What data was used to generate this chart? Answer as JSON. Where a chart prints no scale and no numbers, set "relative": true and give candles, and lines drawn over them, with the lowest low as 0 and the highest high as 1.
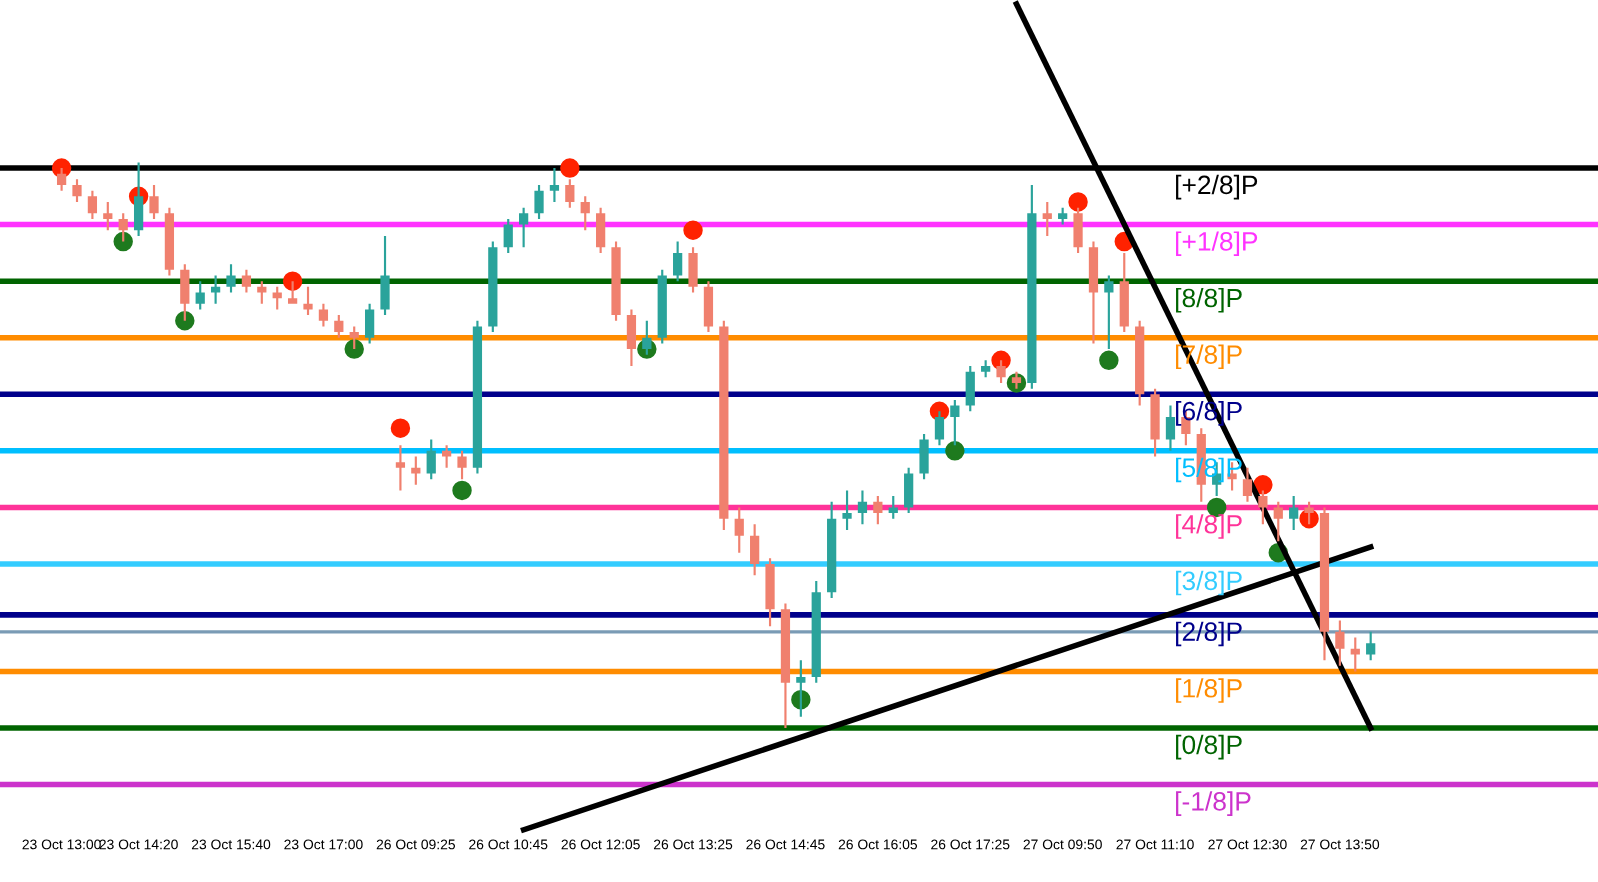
{
  "chart_data": {
    "type": "candlestick",
    "relative": true,
    "categories": [
      "23 Oct 13:00",
      null,
      null,
      null,
      null,
      "23 Oct 14:20",
      null,
      null,
      null,
      null,
      null,
      "23 Oct 15:40",
      null,
      null,
      null,
      null,
      null,
      "23 Oct 17:00",
      null,
      null,
      null,
      null,
      null,
      "26 Oct 09:25",
      null,
      null,
      null,
      null,
      null,
      "26 Oct 10:45",
      null,
      null,
      null,
      null,
      null,
      "26 Oct 12:05",
      null,
      null,
      null,
      null,
      null,
      "26 Oct 13:25",
      null,
      null,
      null,
      null,
      null,
      "26 Oct 14:45",
      null,
      null,
      null,
      null,
      null,
      "26 Oct 16:05",
      null,
      null,
      null,
      null,
      null,
      "26 Oct 17:25",
      null,
      null,
      null,
      null,
      null,
      "27 Oct 09:50",
      null,
      null,
      null,
      null,
      null,
      "27 Oct 11:10",
      null,
      null,
      null,
      null,
      null,
      "27 Oct 12:30",
      null,
      null,
      null,
      null,
      null,
      "27 Oct 13:50",
      null,
      null
    ],
    "ohlc": [
      [
        0.98,
        0.99,
        0.95,
        0.96
      ],
      [
        0.96,
        0.97,
        0.93,
        0.94
      ],
      [
        0.94,
        0.95,
        0.9,
        0.91
      ],
      [
        0.91,
        0.93,
        0.88,
        0.9
      ],
      [
        0.9,
        0.91,
        0.86,
        0.88
      ],
      [
        0.88,
        1.0,
        0.87,
        0.94
      ],
      [
        0.94,
        0.96,
        0.9,
        0.91
      ],
      [
        0.91,
        0.92,
        0.8,
        0.81
      ],
      [
        0.81,
        0.82,
        0.72,
        0.75
      ],
      [
        0.75,
        0.79,
        0.74,
        0.77
      ],
      [
        0.77,
        0.8,
        0.75,
        0.78
      ],
      [
        0.78,
        0.82,
        0.77,
        0.8
      ],
      [
        0.8,
        0.81,
        0.77,
        0.78
      ],
      [
        0.78,
        0.79,
        0.75,
        0.77
      ],
      [
        0.77,
        0.78,
        0.74,
        0.76
      ],
      [
        0.76,
        0.79,
        0.75,
        0.75
      ],
      [
        0.75,
        0.78,
        0.73,
        0.74
      ],
      [
        0.74,
        0.75,
        0.71,
        0.72
      ],
      [
        0.72,
        0.73,
        0.69,
        0.7
      ],
      [
        0.7,
        0.71,
        0.67,
        0.69
      ],
      [
        0.69,
        0.75,
        0.68,
        0.74
      ],
      [
        0.74,
        0.87,
        0.73,
        0.8
      ],
      [
        0.47,
        0.5,
        0.42,
        0.46
      ],
      [
        0.46,
        0.48,
        0.43,
        0.45
      ],
      [
        0.45,
        0.51,
        0.44,
        0.49
      ],
      [
        0.49,
        0.5,
        0.46,
        0.48
      ],
      [
        0.48,
        0.49,
        0.44,
        0.46
      ],
      [
        0.46,
        0.72,
        0.45,
        0.71
      ],
      [
        0.71,
        0.86,
        0.7,
        0.85
      ],
      [
        0.85,
        0.9,
        0.84,
        0.89
      ],
      [
        0.89,
        0.92,
        0.85,
        0.91
      ],
      [
        0.91,
        0.96,
        0.9,
        0.95
      ],
      [
        0.95,
        0.99,
        0.93,
        0.96
      ],
      [
        0.96,
        0.97,
        0.92,
        0.93
      ],
      [
        0.93,
        0.94,
        0.88,
        0.91
      ],
      [
        0.91,
        0.92,
        0.84,
        0.85
      ],
      [
        0.85,
        0.86,
        0.72,
        0.73
      ],
      [
        0.73,
        0.74,
        0.64,
        0.67
      ],
      [
        0.67,
        0.72,
        0.66,
        0.69
      ],
      [
        0.69,
        0.81,
        0.68,
        0.8
      ],
      [
        0.8,
        0.86,
        0.79,
        0.84
      ],
      [
        0.84,
        0.85,
        0.77,
        0.78
      ],
      [
        0.78,
        0.79,
        0.7,
        0.71
      ],
      [
        0.71,
        0.72,
        0.35,
        0.37
      ],
      [
        0.37,
        0.39,
        0.31,
        0.34
      ],
      [
        0.34,
        0.36,
        0.27,
        0.29
      ],
      [
        0.29,
        0.3,
        0.18,
        0.21
      ],
      [
        0.21,
        0.22,
        0.0,
        0.08
      ],
      [
        0.08,
        0.12,
        0.02,
        0.09
      ],
      [
        0.09,
        0.26,
        0.08,
        0.24
      ],
      [
        0.24,
        0.4,
        0.23,
        0.37
      ],
      [
        0.37,
        0.42,
        0.35,
        0.38
      ],
      [
        0.38,
        0.42,
        0.36,
        0.4
      ],
      [
        0.4,
        0.41,
        0.36,
        0.38
      ],
      [
        0.38,
        0.41,
        0.37,
        0.39
      ],
      [
        0.39,
        0.46,
        0.38,
        0.45
      ],
      [
        0.45,
        0.52,
        0.44,
        0.51
      ],
      [
        0.51,
        0.56,
        0.5,
        0.55
      ],
      [
        0.55,
        0.58,
        0.5,
        0.57
      ],
      [
        0.57,
        0.64,
        0.56,
        0.63
      ],
      [
        0.63,
        0.65,
        0.62,
        0.64
      ],
      [
        0.64,
        0.65,
        0.61,
        0.62
      ],
      [
        0.62,
        0.63,
        0.6,
        0.61
      ],
      [
        0.61,
        0.96,
        0.6,
        0.91
      ],
      [
        0.91,
        0.93,
        0.87,
        0.9
      ],
      [
        0.9,
        0.92,
        0.89,
        0.91
      ],
      [
        0.91,
        0.92,
        0.84,
        0.85
      ],
      [
        0.85,
        0.86,
        0.68,
        0.77
      ],
      [
        0.77,
        0.8,
        0.67,
        0.79
      ],
      [
        0.79,
        0.84,
        0.7,
        0.71
      ],
      [
        0.71,
        0.72,
        0.57,
        0.59
      ],
      [
        0.59,
        0.6,
        0.48,
        0.51
      ],
      [
        0.51,
        0.57,
        0.49,
        0.55
      ],
      [
        0.55,
        0.56,
        0.5,
        0.52
      ],
      [
        0.52,
        0.53,
        0.4,
        0.43
      ],
      [
        0.43,
        0.47,
        0.41,
        0.45
      ],
      [
        0.45,
        0.47,
        0.42,
        0.44
      ],
      [
        0.44,
        0.46,
        0.4,
        0.41
      ],
      [
        0.41,
        0.42,
        0.36,
        0.39
      ],
      [
        0.39,
        0.4,
        0.33,
        0.37
      ],
      [
        0.37,
        0.41,
        0.35,
        0.39
      ],
      [
        0.39,
        0.4,
        0.36,
        0.38
      ],
      [
        0.38,
        0.39,
        0.12,
        0.17
      ],
      [
        0.17,
        0.19,
        0.11,
        0.14
      ],
      [
        0.14,
        0.16,
        0.1,
        0.13
      ],
      [
        0.13,
        0.17,
        0.12,
        0.15
      ]
    ],
    "colors": [
      "#f0806e",
      "#f0806e",
      "#f0806e",
      "#f0806e",
      "#f0806e",
      "#2aa39b",
      "#f0806e",
      "#f0806e",
      "#f0806e",
      "#2aa39b",
      "#2aa39b",
      "#2aa39b",
      "#f0806e",
      "#f0806e",
      "#f0806e",
      "#f0806e",
      "#f0806e",
      "#f0806e",
      "#f0806e",
      "#f0806e",
      "#2aa39b",
      "#2aa39b",
      "#f0806e",
      "#f0806e",
      "#2aa39b",
      "#f0806e",
      "#f0806e",
      "#2aa39b",
      "#2aa39b",
      "#2aa39b",
      "#2aa39b",
      "#2aa39b",
      "#2aa39b",
      "#f0806e",
      "#f0806e",
      "#f0806e",
      "#f0806e",
      "#f0806e",
      "#2aa39b",
      "#2aa39b",
      "#2aa39b",
      "#f0806e",
      "#f0806e",
      "#f0806e",
      "#f0806e",
      "#f0806e",
      "#f0806e",
      "#f0806e",
      "#2aa39b",
      "#2aa39b",
      "#2aa39b",
      "#2aa39b",
      "#2aa39b",
      "#f0806e",
      "#2aa39b",
      "#2aa39b",
      "#2aa39b",
      "#2aa39b",
      "#2aa39b",
      "#2aa39b",
      "#2aa39b",
      "#f0806e",
      "#f0806e",
      "#2aa39b",
      "#f0806e",
      "#2aa39b",
      "#f0806e",
      "#f0806e",
      "#2aa39b",
      "#f0806e",
      "#f0806e",
      "#f0806e",
      "#2aa39b",
      "#f0806e",
      "#f0806e",
      "#2aa39b",
      "#f0806e",
      "#f0806e",
      "#f0806e",
      "#f0806e",
      "#2aa39b",
      "#f0806e",
      "#f0806e",
      "#f0806e",
      "#f0806e",
      "#2aa39b"
    ],
    "series": [
      {
        "type": "scatter",
        "color": "#ff2200",
        "marker": "circle",
        "values": [
          0.99,
          null,
          null,
          null,
          null,
          0.94,
          null,
          null,
          null,
          null,
          null,
          null,
          null,
          null,
          null,
          0.79,
          null,
          null,
          null,
          null,
          null,
          null,
          0.53,
          null,
          null,
          null,
          null,
          null,
          null,
          null,
          null,
          null,
          null,
          0.99,
          null,
          null,
          null,
          null,
          null,
          null,
          null,
          0.88,
          null,
          null,
          null,
          null,
          null,
          null,
          null,
          null,
          null,
          null,
          null,
          null,
          null,
          null,
          null,
          0.56,
          null,
          null,
          null,
          0.65,
          null,
          null,
          null,
          null,
          0.93,
          null,
          null,
          0.86,
          null,
          null,
          null,
          null,
          null,
          null,
          null,
          null,
          0.43,
          null,
          null,
          0.37,
          null,
          null,
          null,
          null
        ]
      },
      {
        "type": "scatter",
        "color": "#1e7a1e",
        "marker": "circle",
        "values": [
          null,
          null,
          null,
          null,
          0.86,
          null,
          null,
          null,
          0.72,
          null,
          null,
          null,
          null,
          null,
          null,
          null,
          null,
          null,
          null,
          0.67,
          null,
          null,
          null,
          null,
          null,
          null,
          0.42,
          null,
          null,
          null,
          null,
          null,
          null,
          null,
          null,
          null,
          null,
          null,
          0.67,
          null,
          null,
          null,
          null,
          null,
          null,
          null,
          null,
          null,
          0.05,
          null,
          null,
          null,
          null,
          null,
          null,
          null,
          null,
          null,
          0.49,
          null,
          null,
          null,
          0.61,
          null,
          null,
          null,
          null,
          null,
          0.65,
          null,
          null,
          null,
          null,
          null,
          null,
          0.39,
          null,
          null,
          null,
          0.31,
          null,
          null,
          null,
          null,
          null,
          null
        ]
      },
      {
        "type": "line",
        "color": "#000000",
        "values": [
          null,
          null,
          null,
          null,
          null,
          null,
          null,
          null,
          null,
          null,
          null,
          null,
          null,
          null,
          null,
          null,
          null,
          null,
          null,
          null,
          null,
          null,
          null,
          null,
          null,
          null,
          null,
          null,
          null,
          null,
          null,
          null,
          null,
          null,
          null,
          null,
          null,
          null,
          null,
          null,
          null,
          null,
          null,
          null,
          null,
          null,
          null,
          null,
          null,
          null,
          null,
          null,
          null,
          null,
          null,
          null,
          null,
          null,
          null,
          null,
          null,
          null,
          1.28,
          null,
          null,
          null,
          null,
          null,
          null,
          null,
          null,
          null,
          null,
          null,
          null,
          null,
          null,
          null,
          null,
          null,
          null,
          null,
          null,
          null,
          null,
          0.0
        ]
      },
      {
        "type": "line",
        "color": "#000000",
        "values": [
          null,
          null,
          null,
          null,
          null,
          null,
          null,
          null,
          null,
          null,
          null,
          null,
          null,
          null,
          null,
          null,
          null,
          null,
          null,
          null,
          null,
          null,
          null,
          null,
          null,
          null,
          null,
          null,
          null,
          null,
          -0.18,
          null,
          null,
          null,
          null,
          null,
          null,
          null,
          null,
          null,
          null,
          null,
          null,
          null,
          null,
          null,
          null,
          null,
          null,
          null,
          null,
          null,
          null,
          null,
          null,
          null,
          null,
          null,
          null,
          null,
          null,
          null,
          null,
          null,
          null,
          null,
          null,
          null,
          null,
          null,
          null,
          null,
          null,
          null,
          null,
          null,
          null,
          null,
          null,
          null,
          null,
          null,
          null,
          null,
          null,
          0.32
        ]
      }
    ],
    "ref_lines": [
      {
        "axis": "y",
        "value": 0.99,
        "label": "[+2/8]P",
        "color": "#000000"
      },
      {
        "axis": "y",
        "value": 0.89,
        "label": "[+1/8]P",
        "color": "#ff33ff"
      },
      {
        "axis": "y",
        "value": 0.79,
        "label": "[8/8]P",
        "color": "#006400"
      },
      {
        "axis": "y",
        "value": 0.69,
        "label": "[7/8]P",
        "color": "#ff8c00"
      },
      {
        "axis": "y",
        "value": 0.59,
        "label": "[6/8]P",
        "color": "#00008b"
      },
      {
        "axis": "y",
        "value": 0.49,
        "label": "[5/8]P",
        "color": "#00bfff"
      },
      {
        "axis": "y",
        "value": 0.39,
        "label": "[4/8]P",
        "color": "#ff3399"
      },
      {
        "axis": "y",
        "value": 0.29,
        "label": "[3/8]P",
        "color": "#33ccff"
      },
      {
        "axis": "y",
        "value": 0.2,
        "label": "[2/8]P",
        "color": "#00008b"
      },
      {
        "axis": "y",
        "value": 0.17,
        "label": null,
        "color": "#7a9bb5"
      },
      {
        "axis": "y",
        "value": 0.1,
        "label": "[1/8]P",
        "color": "#ff8c00"
      },
      {
        "axis": "y",
        "value": 0.0,
        "label": "[0/8]P",
        "color": "#006400"
      },
      {
        "axis": "y",
        "value": -0.1,
        "label": "[-1/8]P",
        "color": "#cc33cc"
      }
    ],
    "grid": false,
    "legend": false
  }
}
